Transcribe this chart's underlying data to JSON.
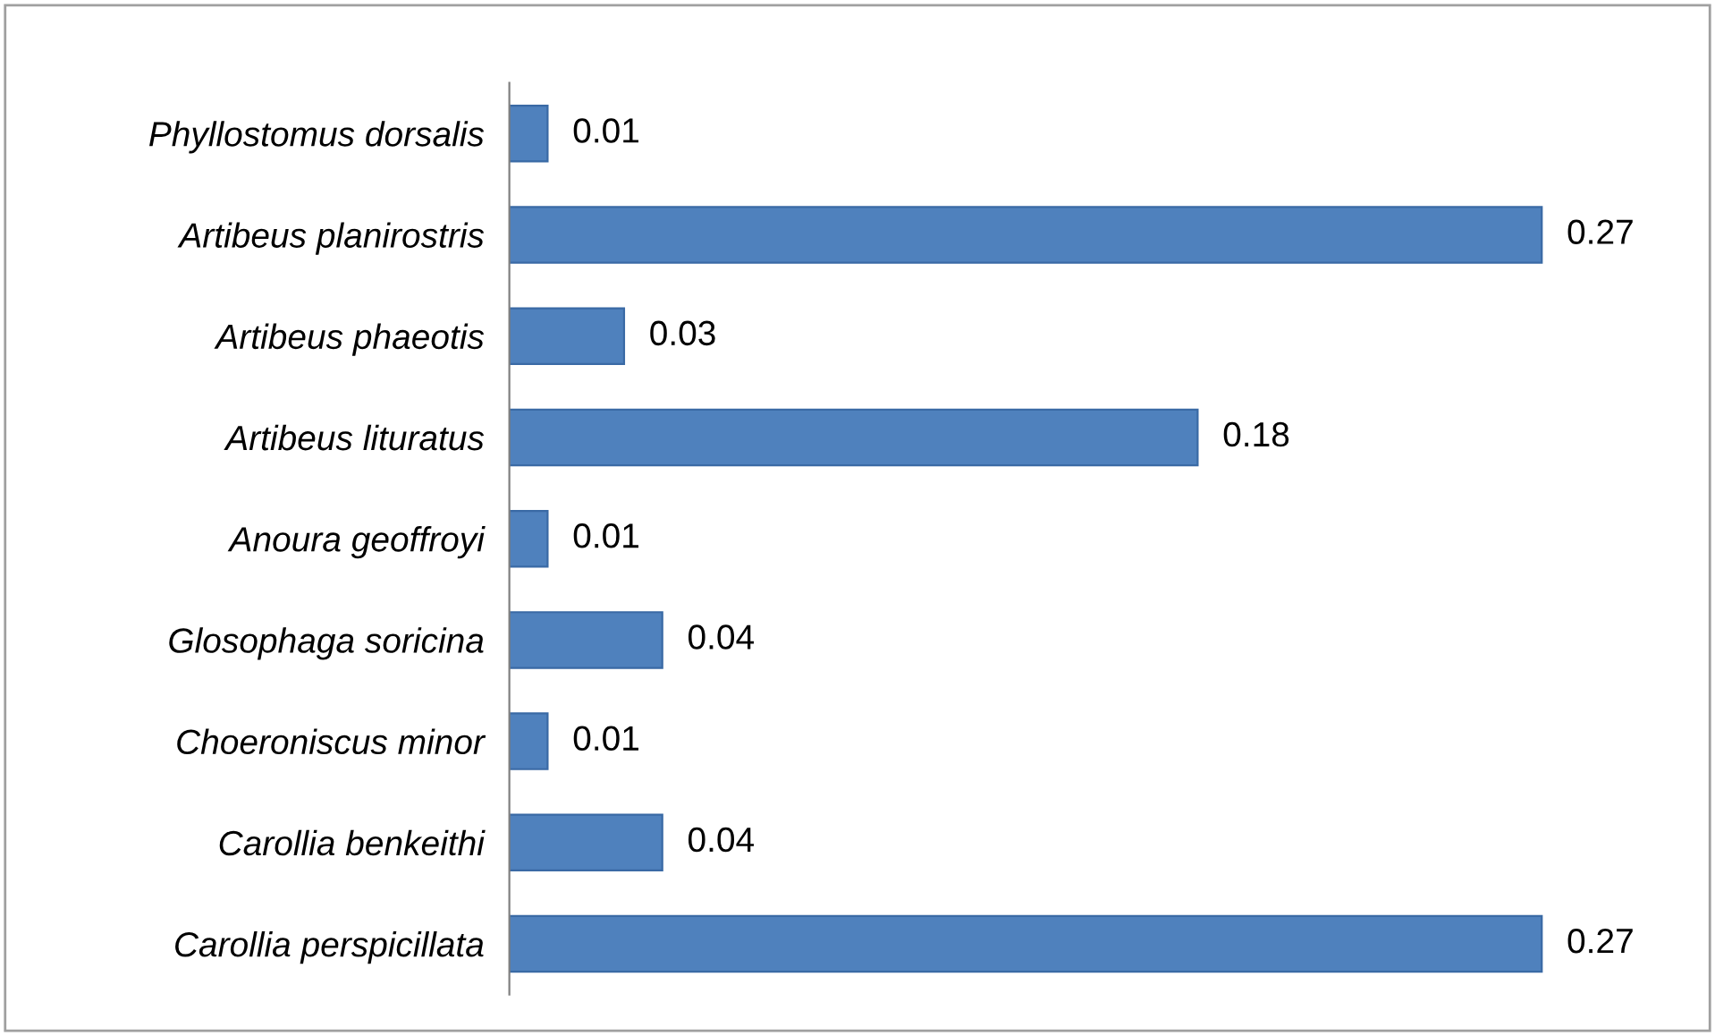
{
  "chart_data": {
    "type": "bar",
    "orientation": "horizontal",
    "categories": [
      "Phyllostomus dorsalis",
      "Artibeus planirostris",
      "Artibeus phaeotis",
      "Artibeus lituratus",
      "Anoura geoffroyi",
      "Glosophaga soricina",
      "Choeroniscus minor",
      "Carollia benkeithi",
      "Carollia perspicillata"
    ],
    "values": [
      0.01,
      0.27,
      0.03,
      0.18,
      0.01,
      0.04,
      0.01,
      0.04,
      0.27
    ],
    "color": "#4f81bd",
    "data_labels": true,
    "grid": false,
    "legend": false
  }
}
